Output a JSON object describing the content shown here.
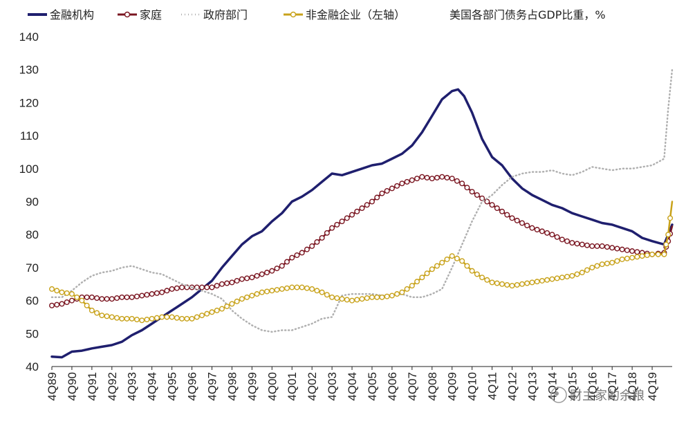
{
  "chart_data": {
    "type": "line",
    "title": "美国各部门债务占GDP比重，%",
    "xlabel": "",
    "ylabel": "",
    "ylim": [
      40,
      140
    ],
    "yticks": [
      40,
      50,
      60,
      70,
      80,
      90,
      100,
      110,
      120,
      130,
      140
    ],
    "grid": false,
    "legend_position": "top",
    "x_tick_labels": [
      "4Q89",
      "4Q90",
      "4Q91",
      "4Q92",
      "4Q93",
      "4Q94",
      "4Q95",
      "4Q96",
      "4Q97",
      "4Q98",
      "4Q99",
      "4Q00",
      "4Q01",
      "4Q02",
      "4Q03",
      "4Q04",
      "4Q05",
      "4Q06",
      "4Q07",
      "4Q08",
      "4Q09",
      "4Q10",
      "4Q11",
      "4Q12",
      "4Q13",
      "4Q14",
      "4Q15",
      "4Q16",
      "4Q17",
      "4Q18",
      "4Q19"
    ],
    "x_end": 30.6,
    "series": [
      {
        "name": "金融机构",
        "style": "solid",
        "color": "#1f1f6e",
        "points": [
          [
            0,
            43
          ],
          [
            0.5,
            42.8
          ],
          [
            1,
            44.5
          ],
          [
            1.5,
            44.8
          ],
          [
            2,
            45.5
          ],
          [
            2.5,
            46
          ],
          [
            3,
            46.5
          ],
          [
            3.5,
            47.5
          ],
          [
            4,
            49.5
          ],
          [
            4.5,
            51
          ],
          [
            5,
            53
          ],
          [
            5.5,
            55
          ],
          [
            6,
            57
          ],
          [
            6.5,
            59
          ],
          [
            7,
            61
          ],
          [
            7.5,
            63.5
          ],
          [
            8,
            66
          ],
          [
            8.5,
            70
          ],
          [
            9,
            73.5
          ],
          [
            9.5,
            77
          ],
          [
            10,
            79.5
          ],
          [
            10.5,
            81
          ],
          [
            11,
            84
          ],
          [
            11.5,
            86.5
          ],
          [
            12,
            90
          ],
          [
            12.5,
            91.5
          ],
          [
            13,
            93.5
          ],
          [
            13.5,
            96
          ],
          [
            14,
            98.5
          ],
          [
            14.5,
            98
          ],
          [
            15,
            99
          ],
          [
            15.5,
            100
          ],
          [
            16,
            101
          ],
          [
            16.5,
            101.5
          ],
          [
            17,
            103
          ],
          [
            17.5,
            104.5
          ],
          [
            18,
            107
          ],
          [
            18.5,
            111
          ],
          [
            19,
            116
          ],
          [
            19.5,
            121
          ],
          [
            20,
            123.5
          ],
          [
            20.3,
            124
          ],
          [
            20.6,
            122
          ],
          [
            21,
            117
          ],
          [
            21.5,
            109
          ],
          [
            22,
            103.5
          ],
          [
            22.5,
            101
          ],
          [
            23,
            97
          ],
          [
            23.5,
            94
          ],
          [
            24,
            92
          ],
          [
            24.5,
            90.5
          ],
          [
            25,
            89
          ],
          [
            25.5,
            88
          ],
          [
            26,
            86.5
          ],
          [
            26.5,
            85.5
          ],
          [
            27,
            84.5
          ],
          [
            27.5,
            83.5
          ],
          [
            28,
            83
          ],
          [
            28.5,
            82
          ],
          [
            29,
            81
          ],
          [
            29.5,
            79
          ],
          [
            30,
            78
          ],
          [
            30.6,
            77
          ],
          [
            30.8,
            80
          ],
          [
            31,
            83
          ]
        ]
      },
      {
        "name": "家庭",
        "style": "marker",
        "color": "#7a1520",
        "points": [
          [
            0,
            58.5
          ],
          [
            0.5,
            59
          ],
          [
            1,
            60
          ],
          [
            1.5,
            61
          ],
          [
            2,
            61
          ],
          [
            2.5,
            60.5
          ],
          [
            3,
            60.5
          ],
          [
            3.5,
            61
          ],
          [
            4,
            61
          ],
          [
            4.5,
            61.5
          ],
          [
            5,
            62
          ],
          [
            5.5,
            62.5
          ],
          [
            6,
            63.5
          ],
          [
            6.5,
            64
          ],
          [
            7,
            64
          ],
          [
            7.5,
            64
          ],
          [
            8,
            64
          ],
          [
            8.5,
            65
          ],
          [
            9,
            65.5
          ],
          [
            9.5,
            66.5
          ],
          [
            10,
            67
          ],
          [
            10.5,
            68
          ],
          [
            11,
            69
          ],
          [
            11.5,
            70.5
          ],
          [
            12,
            73
          ],
          [
            12.5,
            74.5
          ],
          [
            13,
            76.5
          ],
          [
            13.5,
            79
          ],
          [
            14,
            82
          ],
          [
            14.5,
            84
          ],
          [
            15,
            86
          ],
          [
            15.5,
            88
          ],
          [
            16,
            90
          ],
          [
            16.5,
            92.5
          ],
          [
            17,
            94
          ],
          [
            17.5,
            95.5
          ],
          [
            18,
            96.5
          ],
          [
            18.5,
            97.5
          ],
          [
            19,
            97
          ],
          [
            19.5,
            97.5
          ],
          [
            20,
            97
          ],
          [
            20.5,
            95.5
          ],
          [
            21,
            93
          ],
          [
            21.5,
            91
          ],
          [
            22,
            89
          ],
          [
            22.5,
            87
          ],
          [
            23,
            85
          ],
          [
            23.5,
            83.5
          ],
          [
            24,
            82
          ],
          [
            24.5,
            81
          ],
          [
            25,
            80
          ],
          [
            25.5,
            78.5
          ],
          [
            26,
            77.5
          ],
          [
            26.5,
            77
          ],
          [
            27,
            76.5
          ],
          [
            27.5,
            76.5
          ],
          [
            28,
            76
          ],
          [
            28.5,
            75.5
          ],
          [
            29,
            75
          ],
          [
            29.5,
            74.5
          ],
          [
            30,
            74
          ],
          [
            30.6,
            74.5
          ],
          [
            30.8,
            78
          ],
          [
            31,
            82.5
          ]
        ]
      },
      {
        "name": "政府部门",
        "style": "dotted",
        "color": "#b0b0b0",
        "points": [
          [
            0,
            61
          ],
          [
            0.5,
            61
          ],
          [
            1,
            63
          ],
          [
            1.5,
            65.5
          ],
          [
            2,
            67.5
          ],
          [
            2.5,
            68.5
          ],
          [
            3,
            69
          ],
          [
            3.5,
            70
          ],
          [
            4,
            70.5
          ],
          [
            4.5,
            69.5
          ],
          [
            5,
            68.5
          ],
          [
            5.5,
            68
          ],
          [
            6,
            66.5
          ],
          [
            6.5,
            65
          ],
          [
            7,
            64
          ],
          [
            7.5,
            63
          ],
          [
            8,
            62
          ],
          [
            8.5,
            60.5
          ],
          [
            9,
            57
          ],
          [
            9.5,
            54.5
          ],
          [
            10,
            52.5
          ],
          [
            10.5,
            51
          ],
          [
            11,
            50.5
          ],
          [
            11.5,
            51
          ],
          [
            12,
            51
          ],
          [
            12.5,
            52
          ],
          [
            13,
            53
          ],
          [
            13.5,
            54.5
          ],
          [
            14,
            55
          ],
          [
            14.5,
            61.5
          ],
          [
            15,
            62
          ],
          [
            15.5,
            62
          ],
          [
            16,
            62
          ],
          [
            16.5,
            61.5
          ],
          [
            17,
            61.5
          ],
          [
            17.5,
            62
          ],
          [
            18,
            61
          ],
          [
            18.5,
            61
          ],
          [
            19,
            62
          ],
          [
            19.5,
            63.5
          ],
          [
            20,
            70
          ],
          [
            20.5,
            77
          ],
          [
            21,
            84
          ],
          [
            21.5,
            90
          ],
          [
            22,
            92
          ],
          [
            22.5,
            95
          ],
          [
            23,
            97.5
          ],
          [
            23.5,
            98.5
          ],
          [
            24,
            99
          ],
          [
            24.5,
            99
          ],
          [
            25,
            99.5
          ],
          [
            25.5,
            98.5
          ],
          [
            26,
            98
          ],
          [
            26.5,
            99
          ],
          [
            27,
            100.5
          ],
          [
            27.5,
            100
          ],
          [
            28,
            99.5
          ],
          [
            28.5,
            100
          ],
          [
            29,
            100
          ],
          [
            29.5,
            100.5
          ],
          [
            30,
            101
          ],
          [
            30.6,
            103
          ],
          [
            30.8,
            118
          ],
          [
            31,
            130
          ]
        ]
      },
      {
        "name": "非金融企业（左轴）",
        "style": "marker",
        "color": "#c8a21a",
        "points": [
          [
            0,
            63.5
          ],
          [
            0.5,
            62.5
          ],
          [
            1,
            62
          ],
          [
            1.5,
            60
          ],
          [
            2,
            57
          ],
          [
            2.5,
            55.5
          ],
          [
            3,
            55
          ],
          [
            3.5,
            54.5
          ],
          [
            4,
            54.5
          ],
          [
            4.5,
            54
          ],
          [
            5,
            54.5
          ],
          [
            5.5,
            55
          ],
          [
            6,
            55
          ],
          [
            6.5,
            54.5
          ],
          [
            7,
            54.5
          ],
          [
            7.5,
            55.5
          ],
          [
            8,
            56.5
          ],
          [
            8.5,
            57.5
          ],
          [
            9,
            59
          ],
          [
            9.5,
            60.5
          ],
          [
            10,
            61.5
          ],
          [
            10.5,
            62.5
          ],
          [
            11,
            63
          ],
          [
            11.5,
            63.5
          ],
          [
            12,
            64
          ],
          [
            12.5,
            64
          ],
          [
            13,
            63.5
          ],
          [
            13.5,
            62.5
          ],
          [
            14,
            61
          ],
          [
            14.5,
            60.5
          ],
          [
            15,
            60
          ],
          [
            15.5,
            60.5
          ],
          [
            16,
            61
          ],
          [
            16.5,
            61
          ],
          [
            17,
            61.5
          ],
          [
            17.5,
            62.5
          ],
          [
            18,
            64.5
          ],
          [
            18.5,
            67
          ],
          [
            19,
            69.5
          ],
          [
            19.5,
            71.5
          ],
          [
            20,
            73.5
          ],
          [
            20.5,
            72
          ],
          [
            21,
            69
          ],
          [
            21.5,
            67
          ],
          [
            22,
            65.5
          ],
          [
            22.5,
            65
          ],
          [
            23,
            64.5
          ],
          [
            23.5,
            65
          ],
          [
            24,
            65.5
          ],
          [
            24.5,
            66
          ],
          [
            25,
            66.5
          ],
          [
            25.5,
            67
          ],
          [
            26,
            67.5
          ],
          [
            26.5,
            68.5
          ],
          [
            27,
            70
          ],
          [
            27.5,
            71
          ],
          [
            28,
            71.5
          ],
          [
            28.5,
            72.5
          ],
          [
            29,
            73
          ],
          [
            29.5,
            73.5
          ],
          [
            30,
            74
          ],
          [
            30.6,
            74
          ],
          [
            30.8,
            80
          ],
          [
            31,
            90
          ]
        ]
      }
    ],
    "watermark": "财主家的余粮"
  }
}
